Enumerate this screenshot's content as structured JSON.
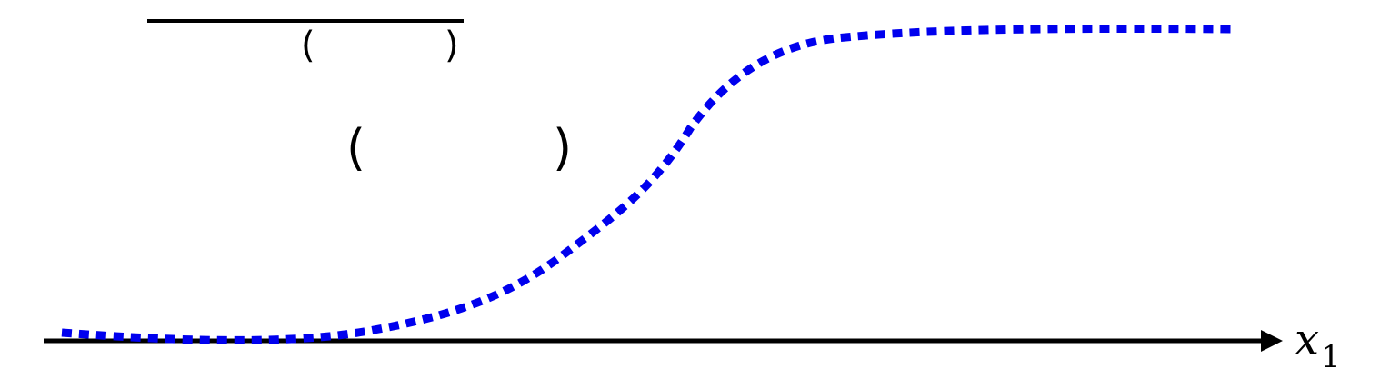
{
  "axis": {
    "label_base": "x",
    "label_subscript": "1"
  },
  "formula": {
    "numerator_open": "(",
    "numerator_close": ")",
    "argument_open": "(",
    "argument_close": ")"
  },
  "colors": {
    "curve": "#0000ee",
    "axis": "#000000",
    "fraction_bar": "#000000"
  },
  "curve": {
    "shape": "sigmoid",
    "style": "dotted"
  }
}
